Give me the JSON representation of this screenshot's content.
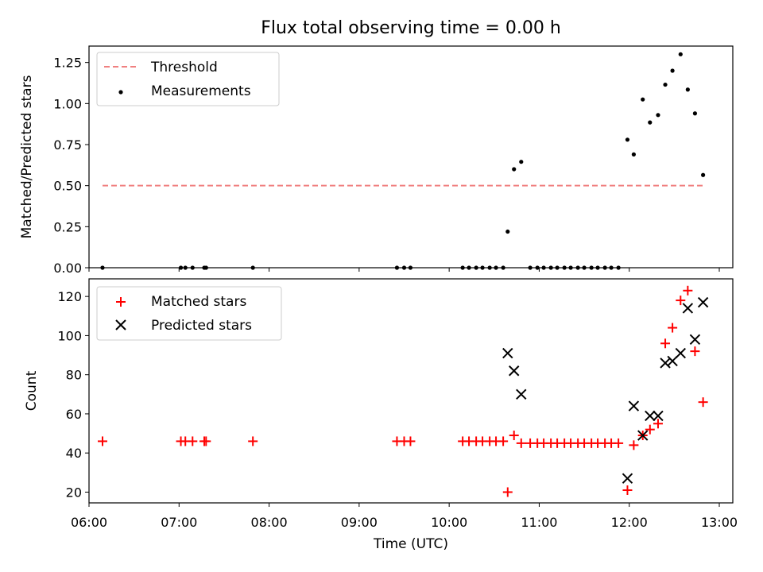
{
  "figure": {
    "title": "Flux total observing time = 0.00 h"
  },
  "chart_data": [
    {
      "type": "scatter",
      "ylabel": "Matched/Predicted stars",
      "xlim": [
        6.0,
        13.15
      ],
      "ylim": [
        0.0,
        1.35
      ],
      "yticks": [
        "0.00",
        "0.25",
        "0.50",
        "0.75",
        "1.00",
        "1.25"
      ],
      "grid": false,
      "legend_position": "top-left",
      "threshold": {
        "name": "Threshold",
        "value": 0.5,
        "x_range": [
          6.15,
          12.82
        ],
        "color": "#f08080",
        "style": "dashed"
      },
      "series": [
        {
          "name": "Measurements",
          "color": "#000000",
          "marker": "dot",
          "x": [
            6.15,
            7.02,
            7.07,
            7.15,
            7.28,
            7.3,
            7.82,
            9.42,
            9.5,
            9.57,
            10.15,
            10.22,
            10.3,
            10.37,
            10.45,
            10.52,
            10.6,
            10.65,
            10.72,
            10.8,
            10.9,
            10.98,
            11.05,
            11.13,
            11.2,
            11.28,
            11.35,
            11.43,
            11.5,
            11.58,
            11.65,
            11.73,
            11.8,
            11.88,
            11.98,
            12.05,
            12.15,
            12.23,
            12.32,
            12.4,
            12.48,
            12.57,
            12.65,
            12.73,
            12.82
          ],
          "y": [
            0,
            0,
            0,
            0,
            0,
            0,
            0,
            0,
            0,
            0,
            0,
            0,
            0,
            0,
            0,
            0,
            0,
            0.22,
            0.6,
            0.645,
            0,
            0,
            0,
            0,
            0,
            0,
            0,
            0,
            0,
            0,
            0,
            0,
            0,
            0,
            0.78,
            0.69,
            1.025,
            0.885,
            0.93,
            1.115,
            1.2,
            1.3,
            1.085,
            0.94,
            0.565
          ]
        }
      ]
    },
    {
      "type": "scatter",
      "xlabel": "Time (UTC)",
      "ylabel": "Count",
      "xlim": [
        6.0,
        13.15
      ],
      "ylim": [
        14.5,
        129
      ],
      "xticks": [
        "06:00",
        "07:00",
        "08:00",
        "09:00",
        "10:00",
        "11:00",
        "12:00",
        "13:00"
      ],
      "yticks": [
        "20",
        "40",
        "60",
        "80",
        "100",
        "120"
      ],
      "grid": false,
      "legend_position": "top-left",
      "series": [
        {
          "name": "Matched stars",
          "color": "#ff0000",
          "marker": "plus",
          "x": [
            6.15,
            7.02,
            7.07,
            7.15,
            7.28,
            7.3,
            7.82,
            9.42,
            9.5,
            9.57,
            10.15,
            10.22,
            10.3,
            10.37,
            10.45,
            10.52,
            10.6,
            10.65,
            10.72,
            10.8,
            10.9,
            10.98,
            11.05,
            11.13,
            11.2,
            11.28,
            11.35,
            11.43,
            11.5,
            11.58,
            11.65,
            11.73,
            11.8,
            11.88,
            11.98,
            12.05,
            12.15,
            12.23,
            12.32,
            12.4,
            12.48,
            12.57,
            12.65,
            12.73,
            12.82
          ],
          "y": [
            46,
            46,
            46,
            46,
            46,
            46,
            46,
            46,
            46,
            46,
            46,
            46,
            46,
            46,
            46,
            46,
            46,
            20,
            49,
            45,
            45,
            45,
            45,
            45,
            45,
            45,
            45,
            45,
            45,
            45,
            45,
            45,
            45,
            45,
            21,
            44,
            49,
            52,
            55,
            96,
            104,
            118,
            123,
            92,
            66
          ]
        },
        {
          "name": "Predicted stars",
          "color": "#000000",
          "marker": "x",
          "x": [
            10.65,
            10.72,
            10.8,
            11.98,
            12.05,
            12.15,
            12.23,
            12.32,
            12.4,
            12.48,
            12.57,
            12.65,
            12.73,
            12.82
          ],
          "y": [
            91,
            82,
            70,
            27,
            64,
            49,
            59,
            59,
            86,
            87,
            91,
            114,
            98,
            117
          ]
        }
      ]
    }
  ]
}
